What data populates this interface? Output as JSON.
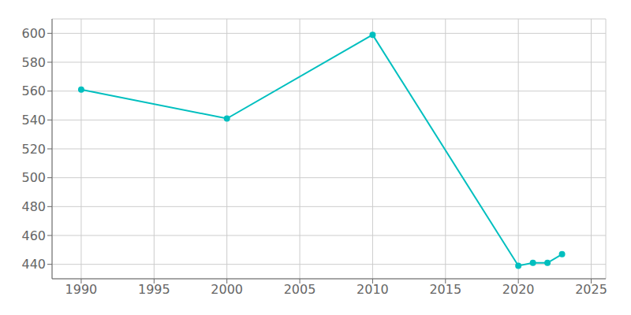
{
  "chart_data": {
    "type": "line",
    "x": [
      1990,
      2000,
      2010,
      2020,
      2021,
      2022,
      2023
    ],
    "values": [
      561,
      541,
      599,
      439,
      441,
      441,
      447
    ],
    "color": "#00bfbf",
    "xlim": [
      1988,
      2026
    ],
    "ylim": [
      430,
      610
    ],
    "xticks": [
      1990,
      1995,
      2000,
      2005,
      2010,
      2015,
      2020,
      2025
    ],
    "yticks": [
      440,
      460,
      480,
      500,
      520,
      540,
      560,
      580,
      600
    ],
    "grid": true,
    "marker": "circle"
  }
}
